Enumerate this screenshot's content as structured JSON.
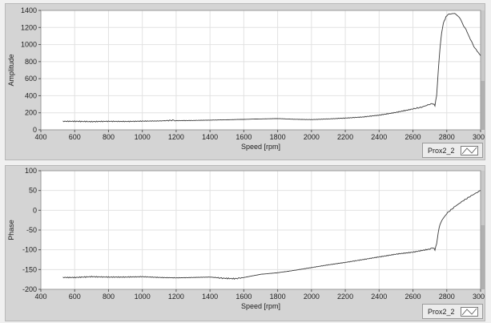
{
  "chart_data": [
    {
      "type": "line",
      "ylabel": "Amplitude",
      "xlabel": "Speed [rpm]",
      "xlim": [
        400,
        3000
      ],
      "ylim": [
        0,
        1400
      ],
      "xticks": [
        400,
        600,
        800,
        1000,
        1200,
        1400,
        1600,
        1800,
        2000,
        2200,
        2400,
        2600,
        2800,
        3000
      ],
      "yticks": [
        0,
        200,
        400,
        600,
        800,
        1000,
        1200,
        1400
      ],
      "grid": true,
      "legend": "bottom-right",
      "series": [
        {
          "name": "Prox2_2",
          "x": [
            530,
            600,
            700,
            800,
            900,
            1000,
            1100,
            1180,
            1200,
            1300,
            1400,
            1500,
            1600,
            1700,
            1800,
            1900,
            2000,
            2100,
            2200,
            2300,
            2400,
            2500,
            2600,
            2650,
            2700,
            2720,
            2730,
            2740,
            2750,
            2760,
            2770,
            2780,
            2790,
            2800,
            2820,
            2840,
            2860,
            2880,
            2900,
            2920,
            2940,
            2960,
            2980,
            3000
          ],
          "values": [
            100,
            100,
            96,
            100,
            98,
            102,
            104,
            112,
            108,
            110,
            114,
            118,
            123,
            128,
            132,
            124,
            120,
            128,
            138,
            150,
            172,
            205,
            245,
            265,
            300,
            305,
            285,
            400,
            700,
            960,
            1140,
            1250,
            1300,
            1340,
            1360,
            1365,
            1350,
            1300,
            1220,
            1150,
            1060,
            980,
            920,
            870
          ]
        }
      ]
    },
    {
      "type": "line",
      "ylabel": "Phase",
      "xlabel": "Speed [rpm]",
      "xlim": [
        400,
        3000
      ],
      "ylim": [
        -200,
        100
      ],
      "xticks": [
        400,
        600,
        800,
        1000,
        1200,
        1400,
        1600,
        1800,
        2000,
        2200,
        2400,
        2600,
        2800,
        3000
      ],
      "yticks": [
        -200,
        -150,
        -100,
        -50,
        0,
        50,
        100
      ],
      "grid": true,
      "legend": "bottom-right",
      "series": [
        {
          "name": "Prox2_2",
          "x": [
            530,
            600,
            700,
            800,
            900,
            1000,
            1100,
            1200,
            1300,
            1400,
            1480,
            1550,
            1600,
            1700,
            1800,
            1900,
            2000,
            2100,
            2200,
            2300,
            2400,
            2500,
            2600,
            2700,
            2720,
            2730,
            2740,
            2750,
            2760,
            2780,
            2800,
            2850,
            2900,
            2950,
            3000
          ],
          "values": [
            -170,
            -170,
            -168,
            -169,
            -169,
            -168,
            -170,
            -171,
            -170,
            -169,
            -172,
            -173,
            -170,
            -162,
            -158,
            -152,
            -145,
            -138,
            -132,
            -125,
            -118,
            -111,
            -106,
            -98,
            -95,
            -100,
            -85,
            -55,
            -35,
            -20,
            -8,
            10,
            25,
            38,
            50
          ]
        }
      ]
    }
  ]
}
